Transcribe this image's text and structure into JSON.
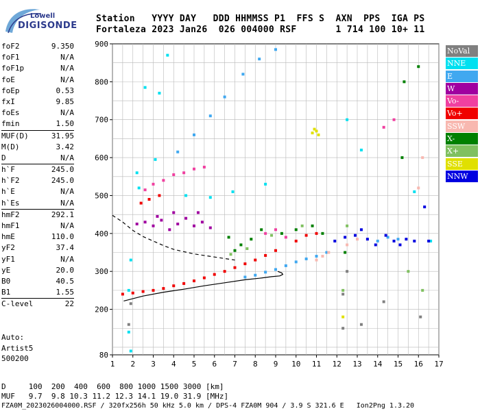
{
  "logo": {
    "line1": "Lowell",
    "line2": "DIGISONDE"
  },
  "header": {
    "labels": "Station   YYYY DAY   DDD HHMMSS P1  FFS S  AXN  PPS  IGA PS",
    "values": "Fortaleza 2023 Jan26  026 004000 RSF       1 714 100 10+ 11"
  },
  "params": {
    "group1": [
      {
        "label": "foF2",
        "value": "9.350"
      },
      {
        "label": "foF1",
        "value": "N/A"
      },
      {
        "label": "foF1p",
        "value": "N/A"
      },
      {
        "label": "foE",
        "value": "N/A"
      },
      {
        "label": "foEp",
        "value": "0.53"
      },
      {
        "label": "fxI",
        "value": "9.85"
      },
      {
        "label": "foEs",
        "value": "N/A"
      },
      {
        "label": "fmin",
        "value": "1.50"
      }
    ],
    "group2": [
      {
        "label": "MUF(D)",
        "value": "31.95"
      },
      {
        "label": "M(D)",
        "value": "3.42"
      },
      {
        "label": "D",
        "value": "N/A"
      }
    ],
    "group3": [
      {
        "label": "h`F",
        "value": "245.0"
      },
      {
        "label": "h`F2",
        "value": "245.0"
      },
      {
        "label": "h`E",
        "value": "N/A"
      },
      {
        "label": "h`Es",
        "value": "N/A"
      }
    ],
    "group4": [
      {
        "label": "hmF2",
        "value": "292.1"
      },
      {
        "label": "hmF1",
        "value": "N/A"
      },
      {
        "label": "hmE",
        "value": "110.0"
      },
      {
        "label": "yF2",
        "value": "37.4"
      },
      {
        "label": "yF1",
        "value": "N/A"
      },
      {
        "label": "yE",
        "value": "20.0"
      },
      {
        "label": "B0",
        "value": "40.5"
      },
      {
        "label": "B1",
        "value": "1.55"
      }
    ],
    "group5": [
      {
        "label": "C-level",
        "value": "22"
      }
    ]
  },
  "autoscale": {
    "line1": "Auto:",
    "line2": "Artist5",
    "line3": "500200"
  },
  "legend": [
    {
      "label": "NoVal",
      "color": "#808080"
    },
    {
      "label": "NNE",
      "color": "#00e0f0"
    },
    {
      "label": "E",
      "color": "#40a8f0"
    },
    {
      "label": "W",
      "color": "#a000a0"
    },
    {
      "label": "Vo-",
      "color": "#f040a0"
    },
    {
      "label": "Vo+",
      "color": "#f00000"
    },
    {
      "label": "SSW",
      "color": "#f8b8b0"
    },
    {
      "label": "X-",
      "color": "#008000"
    },
    {
      "label": "X+",
      "color": "#80c060"
    },
    {
      "label": "SSE",
      "color": "#e0e000"
    },
    {
      "label": "NNW",
      "color": "#0000e0"
    }
  ],
  "footer": {
    "d_row": "D     100  200  400  600  800 1000 1500 3000 [km]",
    "muf_row": "MUF   9.7  9.8 10.3 11.2 12.3 14.1 19.0 31.9 [MHz]",
    "file_row": "FZA0M_2023026004000.RSF / 320fx256h 50 kHz 5.0 km / DPS-4 FZA0M 904 / 3.9 S 321.6 E   Ion2Png 1.3.20"
  },
  "chart_data": {
    "type": "scatter",
    "title": "",
    "xlabel": "",
    "ylabel": "",
    "xlim": [
      1,
      17
    ],
    "ylim": [
      80,
      900
    ],
    "x_ticks": [
      1,
      2,
      3,
      4,
      5,
      6,
      7,
      8,
      9,
      10,
      11,
      12,
      13,
      14,
      15,
      16,
      17
    ],
    "y_ticks": [
      80,
      200,
      300,
      400,
      500,
      600,
      700,
      800,
      900
    ],
    "grid": true,
    "series": [
      {
        "name": "NNE",
        "color": "#00e0f0",
        "points": [
          [
            1.8,
            250
          ],
          [
            1.9,
            330
          ],
          [
            2.2,
            560
          ],
          [
            2.3,
            520
          ],
          [
            2.6,
            785
          ],
          [
            3.3,
            770
          ],
          [
            3.7,
            870
          ],
          [
            4.6,
            500
          ],
          [
            5.8,
            495
          ],
          [
            6.9,
            510
          ],
          [
            8.5,
            530
          ],
          [
            12.5,
            700
          ],
          [
            13.2,
            620
          ],
          [
            15.8,
            510
          ],
          [
            16.6,
            380
          ],
          [
            1.8,
            140
          ],
          [
            1.9,
            90
          ],
          [
            3.1,
            595
          ]
        ]
      },
      {
        "name": "E",
        "color": "#40a8f0",
        "points": [
          [
            7.5,
            285
          ],
          [
            8.0,
            290
          ],
          [
            8.5,
            298
          ],
          [
            9.0,
            305
          ],
          [
            9.5,
            315
          ],
          [
            10.0,
            325
          ],
          [
            10.5,
            333
          ],
          [
            11.0,
            340
          ],
          [
            11.5,
            350
          ],
          [
            4.2,
            615
          ],
          [
            5.0,
            660
          ],
          [
            5.8,
            710
          ],
          [
            6.5,
            760
          ],
          [
            7.4,
            820
          ],
          [
            8.2,
            860
          ],
          [
            9.0,
            885
          ],
          [
            14.0,
            380
          ],
          [
            14.5,
            390
          ],
          [
            15.0,
            385
          ]
        ]
      },
      {
        "name": "W",
        "color": "#a000a0",
        "points": [
          [
            2.2,
            425
          ],
          [
            2.6,
            430
          ],
          [
            3.0,
            420
          ],
          [
            3.4,
            435
          ],
          [
            3.8,
            410
          ],
          [
            4.2,
            425
          ],
          [
            4.6,
            440
          ],
          [
            5.0,
            420
          ],
          [
            5.4,
            430
          ],
          [
            5.8,
            415
          ],
          [
            3.2,
            445
          ],
          [
            4.0,
            455
          ],
          [
            5.2,
            455
          ]
        ]
      },
      {
        "name": "Vo-",
        "color": "#f040a0",
        "points": [
          [
            2.6,
            515
          ],
          [
            3.0,
            530
          ],
          [
            3.5,
            540
          ],
          [
            4.0,
            555
          ],
          [
            4.5,
            560
          ],
          [
            5.0,
            570
          ],
          [
            5.5,
            575
          ],
          [
            8.5,
            400
          ],
          [
            9.0,
            410
          ],
          [
            9.5,
            390
          ],
          [
            14.3,
            680
          ],
          [
            14.8,
            700
          ]
        ]
      },
      {
        "name": "Vo+",
        "color": "#f00000",
        "points": [
          [
            1.5,
            240
          ],
          [
            2.0,
            243
          ],
          [
            2.5,
            247
          ],
          [
            3.0,
            250
          ],
          [
            3.5,
            255
          ],
          [
            4.0,
            262
          ],
          [
            4.5,
            268
          ],
          [
            5.0,
            275
          ],
          [
            5.5,
            283
          ],
          [
            6.0,
            292
          ],
          [
            6.5,
            300
          ],
          [
            7.0,
            310
          ],
          [
            7.5,
            320
          ],
          [
            8.0,
            330
          ],
          [
            8.5,
            342
          ],
          [
            9.0,
            355
          ],
          [
            10.0,
            380
          ],
          [
            10.5,
            395
          ],
          [
            11.0,
            400
          ],
          [
            2.4,
            480
          ],
          [
            2.8,
            490
          ],
          [
            3.3,
            500
          ]
        ]
      },
      {
        "name": "SSW",
        "color": "#f8b8b0",
        "points": [
          [
            11.0,
            330
          ],
          [
            11.3,
            340
          ],
          [
            11.6,
            350
          ],
          [
            12.5,
            370
          ],
          [
            13.0,
            385
          ],
          [
            16.0,
            520
          ],
          [
            16.2,
            600
          ]
        ]
      },
      {
        "name": "X-",
        "color": "#008000",
        "points": [
          [
            6.7,
            390
          ],
          [
            7.0,
            355
          ],
          [
            7.3,
            370
          ],
          [
            7.8,
            385
          ],
          [
            8.3,
            410
          ],
          [
            9.3,
            400
          ],
          [
            10.0,
            410
          ],
          [
            10.8,
            420
          ],
          [
            11.3,
            400
          ],
          [
            12.4,
            350
          ],
          [
            15.2,
            600
          ],
          [
            15.3,
            800
          ],
          [
            16.0,
            840
          ]
        ]
      },
      {
        "name": "X+",
        "color": "#80c060",
        "points": [
          [
            6.8,
            345
          ],
          [
            7.6,
            360
          ],
          [
            8.8,
            395
          ],
          [
            10.3,
            420
          ],
          [
            12.3,
            250
          ],
          [
            12.5,
            420
          ],
          [
            15.5,
            300
          ],
          [
            16.2,
            250
          ]
        ]
      },
      {
        "name": "SSE",
        "color": "#e0e000",
        "points": [
          [
            10.8,
            665
          ],
          [
            11.0,
            670
          ],
          [
            11.1,
            660
          ],
          [
            10.9,
            675
          ],
          [
            12.3,
            180
          ]
        ]
      },
      {
        "name": "NNW",
        "color": "#0000e0",
        "points": [
          [
            11.9,
            380
          ],
          [
            12.4,
            390
          ],
          [
            12.9,
            395
          ],
          [
            13.2,
            410
          ],
          [
            13.5,
            385
          ],
          [
            13.9,
            370
          ],
          [
            14.4,
            395
          ],
          [
            14.8,
            380
          ],
          [
            15.1,
            370
          ],
          [
            15.4,
            385
          ],
          [
            15.8,
            380
          ],
          [
            16.3,
            470
          ],
          [
            16.5,
            380
          ]
        ]
      },
      {
        "name": "NoVal",
        "color": "#808080",
        "points": [
          [
            12.3,
            240
          ],
          [
            12.5,
            300
          ],
          [
            12.3,
            150
          ],
          [
            13.2,
            160
          ],
          [
            14.3,
            220
          ],
          [
            16.1,
            180
          ],
          [
            1.8,
            160
          ],
          [
            1.9,
            215
          ]
        ]
      }
    ],
    "profile_solid": [
      [
        1.55,
        222
      ],
      [
        2.5,
        235
      ],
      [
        3.5,
        245
      ],
      [
        4.5,
        253
      ],
      [
        5.5,
        262
      ],
      [
        6.5,
        270
      ],
      [
        7.5,
        278
      ],
      [
        8.2,
        282
      ],
      [
        8.8,
        286
      ],
      [
        9.2,
        288
      ],
      [
        9.35,
        292
      ],
      [
        9.3,
        296
      ],
      [
        9.1,
        300
      ]
    ],
    "profile_dashed": [
      [
        1.0,
        448
      ],
      [
        1.5,
        430
      ],
      [
        2.0,
        408
      ],
      [
        2.5,
        392
      ],
      [
        3.0,
        380
      ],
      [
        3.5,
        368
      ],
      [
        4.0,
        358
      ],
      [
        5.0,
        346
      ],
      [
        6.0,
        338
      ],
      [
        7.0,
        330
      ]
    ]
  }
}
